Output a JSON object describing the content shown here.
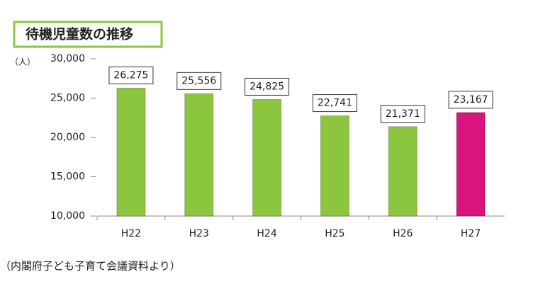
{
  "chart_data": {
    "type": "bar",
    "title": "待機児童数の推移",
    "y_unit": "（人）",
    "categories": [
      "H22",
      "H23",
      "H24",
      "H25",
      "H26",
      "H27"
    ],
    "values": [
      26275,
      25556,
      24825,
      22741,
      21371,
      23167
    ],
    "value_labels": [
      "26,275",
      "25,556",
      "24,825",
      "22,741",
      "21,371",
      "23,167"
    ],
    "colors": [
      "#8cc63e",
      "#8cc63e",
      "#8cc63e",
      "#8cc63e",
      "#8cc63e",
      "#d9147e"
    ],
    "ylim": [
      10000,
      30000
    ],
    "yticks": [
      {
        "value": 10000,
        "label": "10,000"
      },
      {
        "value": 15000,
        "label": "15,000"
      },
      {
        "value": 20000,
        "label": "20,000"
      },
      {
        "value": 25000,
        "label": "25,000"
      },
      {
        "value": 30000,
        "label": "30,000"
      }
    ],
    "grid": false
  },
  "source": "（内閣府子ども子育て会議資料より）"
}
